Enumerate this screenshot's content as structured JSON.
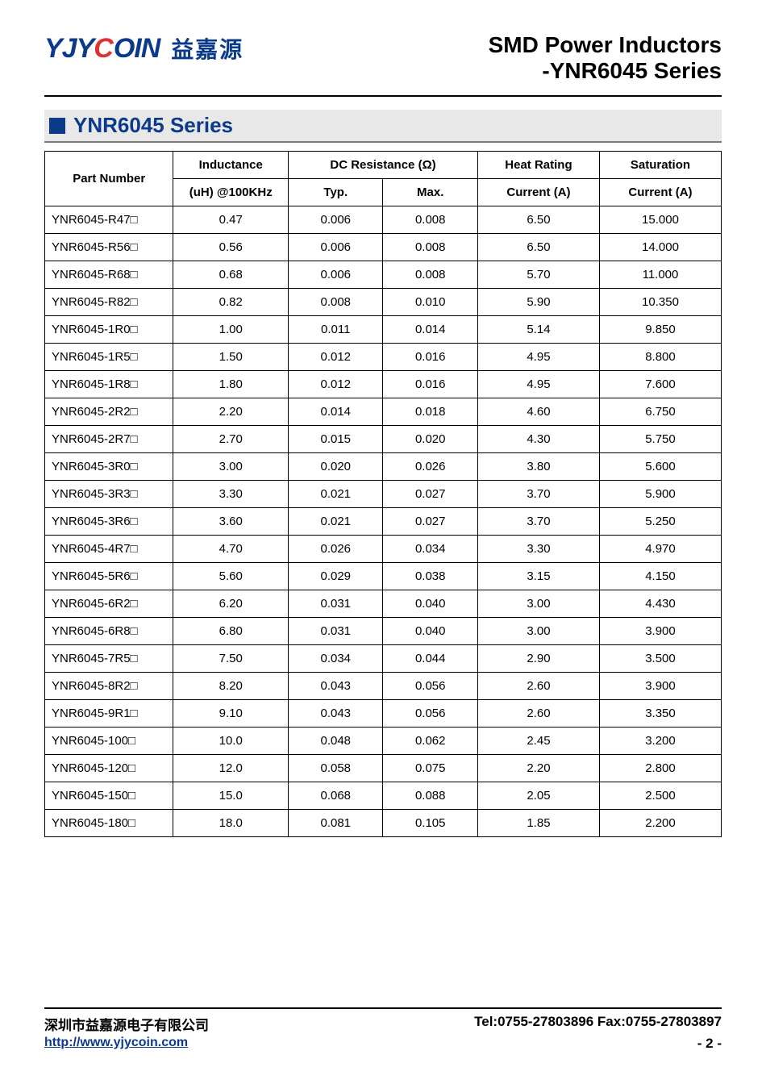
{
  "logo": {
    "text_yjy": "YJY",
    "text_c": "C",
    "text_oin": "OIN",
    "cn": "益嘉源"
  },
  "doc_title": {
    "line1": "SMD Power Inductors",
    "line2": "-YNR6045 Series"
  },
  "section": {
    "title": "YNR6045 Series"
  },
  "table": {
    "headers": {
      "part_number": "Part Number",
      "inductance_top": "Inductance",
      "inductance_sub": "(uH) @100KHz",
      "dcr": "DC Resistance (Ω)",
      "dcr_typ": "Typ.",
      "dcr_max": "Max.",
      "heat_top": "Heat Rating",
      "heat_sub": "Current (A)",
      "sat_top": "Saturation",
      "sat_sub": "Current (A)"
    },
    "columns": [
      "part_number",
      "inductance",
      "dcr_typ",
      "dcr_max",
      "heat",
      "sat"
    ],
    "rows": [
      [
        "YNR6045-R47□",
        "0.47",
        "0.006",
        "0.008",
        "6.50",
        "15.000"
      ],
      [
        "YNR6045-R56□",
        "0.56",
        "0.006",
        "0.008",
        "6.50",
        "14.000"
      ],
      [
        "YNR6045-R68□",
        "0.68",
        "0.006",
        "0.008",
        "5.70",
        "11.000"
      ],
      [
        "YNR6045-R82□",
        "0.82",
        "0.008",
        "0.010",
        "5.90",
        "10.350"
      ],
      [
        "YNR6045-1R0□",
        "1.00",
        "0.011",
        "0.014",
        "5.14",
        "9.850"
      ],
      [
        "YNR6045-1R5□",
        "1.50",
        "0.012",
        "0.016",
        "4.95",
        "8.800"
      ],
      [
        "YNR6045-1R8□",
        "1.80",
        "0.012",
        "0.016",
        "4.95",
        "7.600"
      ],
      [
        "YNR6045-2R2□",
        "2.20",
        "0.014",
        "0.018",
        "4.60",
        "6.750"
      ],
      [
        "YNR6045-2R7□",
        "2.70",
        "0.015",
        "0.020",
        "4.30",
        "5.750"
      ],
      [
        "YNR6045-3R0□",
        "3.00",
        "0.020",
        "0.026",
        "3.80",
        "5.600"
      ],
      [
        "YNR6045-3R3□",
        "3.30",
        "0.021",
        "0.027",
        "3.70",
        "5.900"
      ],
      [
        "YNR6045-3R6□",
        "3.60",
        "0.021",
        "0.027",
        "3.70",
        "5.250"
      ],
      [
        "YNR6045-4R7□",
        "4.70",
        "0.026",
        "0.034",
        "3.30",
        "4.970"
      ],
      [
        "YNR6045-5R6□",
        "5.60",
        "0.029",
        "0.038",
        "3.15",
        "4.150"
      ],
      [
        "YNR6045-6R2□",
        "6.20",
        "0.031",
        "0.040",
        "3.00",
        "4.430"
      ],
      [
        "YNR6045-6R8□",
        "6.80",
        "0.031",
        "0.040",
        "3.00",
        "3.900"
      ],
      [
        "YNR6045-7R5□",
        "7.50",
        "0.034",
        "0.044",
        "2.90",
        "3.500"
      ],
      [
        "YNR6045-8R2□",
        "8.20",
        "0.043",
        "0.056",
        "2.60",
        "3.900"
      ],
      [
        "YNR6045-9R1□",
        "9.10",
        "0.043",
        "0.056",
        "2.60",
        "3.350"
      ],
      [
        "YNR6045-100□",
        "10.0",
        "0.048",
        "0.062",
        "2.45",
        "3.200"
      ],
      [
        "YNR6045-120□",
        "12.0",
        "0.058",
        "0.075",
        "2.20",
        "2.800"
      ],
      [
        "YNR6045-150□",
        "15.0",
        "0.068",
        "0.088",
        "2.05",
        "2.500"
      ],
      [
        "YNR6045-180□",
        "18.0",
        "0.081",
        "0.105",
        "1.85",
        "2.200"
      ]
    ],
    "col_widths": [
      "19%",
      "17%",
      "14%",
      "14%",
      "18%",
      "18%"
    ],
    "border_color": "#000000",
    "header_bg": "#ffffff",
    "font_size": 15
  },
  "footer": {
    "company_cn": "深圳市益嘉源电子有限公司",
    "contact": "Tel:0755-27803896   Fax:0755-27803897",
    "url": "http://www.yjycoin.com",
    "page": "- 2 -"
  },
  "colors": {
    "brand_blue": "#0b3a8a",
    "brand_red": "#e03030",
    "section_bg": "#e8e8e8",
    "section_border": "#7a7a7a",
    "text": "#000000",
    "link": "#0b3a8a"
  }
}
